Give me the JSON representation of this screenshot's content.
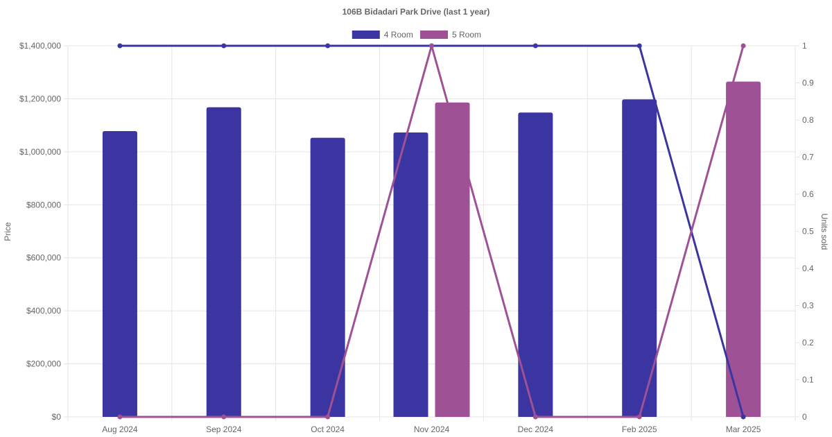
{
  "chart_data": {
    "type": "bar",
    "title": "106B Bidadari Park Drive (last 1 year)",
    "categories": [
      "Aug 2024",
      "Sep 2024",
      "Oct 2024",
      "Nov 2024",
      "Dec 2024",
      "Feb 2025",
      "Mar 2025"
    ],
    "y_left": {
      "label": "Price",
      "min": 0,
      "max": 1400000,
      "ticks": [
        0,
        200000,
        400000,
        600000,
        800000,
        1000000,
        1200000,
        1400000
      ],
      "tick_labels": [
        "$0",
        "$200,000",
        "$400,000",
        "$600,000",
        "$800,000",
        "$1,000,000",
        "$1,200,000",
        "$1,400,000"
      ]
    },
    "y_right": {
      "label": "Units sold",
      "min": 0,
      "max": 1,
      "ticks": [
        0,
        0.1,
        0.2,
        0.3,
        0.4,
        0.5,
        0.6,
        0.7,
        0.8,
        0.9,
        1
      ],
      "tick_labels": [
        "0",
        "0.1",
        "0.2",
        "0.3",
        "0.4",
        "0.5",
        "0.6",
        "0.7",
        "0.8",
        "0.9",
        "1"
      ]
    },
    "grid": true,
    "legend_position": "top",
    "series": [
      {
        "name": "4 Room",
        "color": "#3a35a0",
        "bar_values": [
          1078000,
          1168000,
          1053000,
          1073000,
          1148000,
          1198000,
          null
        ],
        "units_sold": [
          1,
          1,
          1,
          1,
          1,
          1,
          0
        ]
      },
      {
        "name": "5 Room",
        "color": "#9e5195",
        "bar_values": [
          null,
          null,
          null,
          1186000,
          null,
          null,
          1265000
        ],
        "units_sold": [
          0,
          0,
          0,
          1,
          0,
          0,
          1
        ]
      }
    ]
  }
}
